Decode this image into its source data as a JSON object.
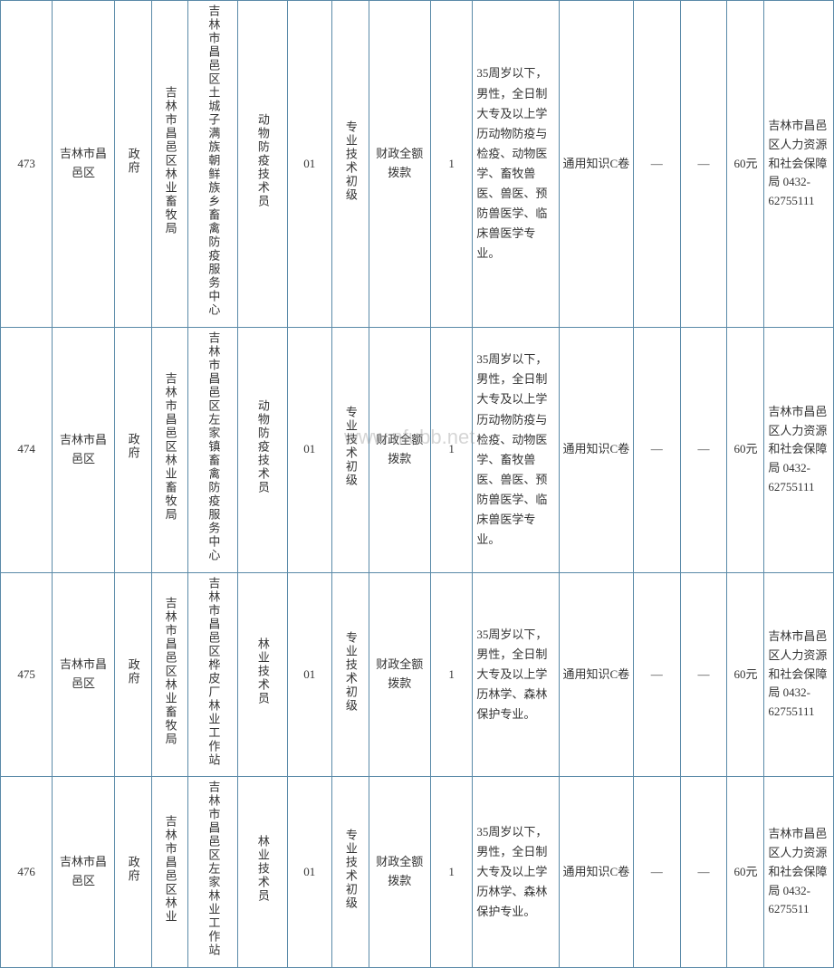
{
  "table": {
    "border_color": "#5a8aa8",
    "font_size": 13,
    "text_color": "#333333",
    "background_color": "#ffffff",
    "rows": [
      {
        "idx": "473",
        "region": "吉林市昌邑区",
        "type": "政府",
        "dept": "吉林市昌邑区林业畜牧局",
        "unit": "吉林市昌邑区土城子满族朝鲜族乡畜禽防疫服务中心",
        "pos": "动物防疫技术员",
        "code": "01",
        "level": "专业技术初级",
        "fund": "财政全额拨款",
        "count": "1",
        "req": "35周岁以下，男性，全日制大专及以上学历动物防疫与检疫、动物医学、畜牧兽医、兽医、预防兽医学、临床兽医学专业。",
        "exam": "通用知识C卷",
        "blank1": "—",
        "blank2": "—",
        "fee": "60元",
        "contact": "吉林市昌邑区人力资源和社会保障局 0432-62755111"
      },
      {
        "idx": "474",
        "region": "吉林市昌邑区",
        "type": "政府",
        "dept": "吉林市昌邑区林业畜牧局",
        "unit": "吉林市昌邑区左家镇畜禽防疫服务中心",
        "pos": "动物防疫技术员",
        "code": "01",
        "level": "专业技术初级",
        "fund": "财政全额拨款",
        "count": "1",
        "req": "35周岁以下，男性，全日制大专及以上学历动物防疫与检疫、动物医学、畜牧兽医、兽医、预防兽医学、临床兽医学专业。",
        "exam": "通用知识C卷",
        "blank1": "—",
        "blank2": "—",
        "fee": "60元",
        "contact": "吉林市昌邑区人力资源和社会保障局 0432-62755111"
      },
      {
        "idx": "475",
        "region": "吉林市昌邑区",
        "type": "政府",
        "dept": "吉林市昌邑区林业畜牧局",
        "unit": "吉林市昌邑区桦皮厂林业工作站",
        "pos": "林业技术员",
        "code": "01",
        "level": "专业技术初级",
        "fund": "财政全额拨款",
        "count": "1",
        "req": "35周岁以下，男性，全日制大专及以上学历林学、森林保护专业。",
        "exam": "通用知识C卷",
        "blank1": "—",
        "blank2": "—",
        "fee": "60元",
        "contact": "吉林市昌邑区人力资源和社会保障局 0432-62755111"
      },
      {
        "idx": "476",
        "region": "吉林市昌邑区",
        "type": "政府",
        "dept": "吉林市昌邑区林业",
        "unit": "吉林市昌邑区左家林业工作站",
        "pos": "林业技术员",
        "code": "01",
        "level": "专业技术初级",
        "fund": "财政全额拨款",
        "count": "1",
        "req": "35周岁以下，男性，全日制大专及以上学历林学、森林保护专业。",
        "exam": "通用知识C卷",
        "blank1": "—",
        "blank2": "—",
        "fee": "60元",
        "contact": "吉林市昌邑区人力资源和社会保障局 0432-6275511"
      }
    ]
  },
  "watermark": "www.nfubb.net"
}
